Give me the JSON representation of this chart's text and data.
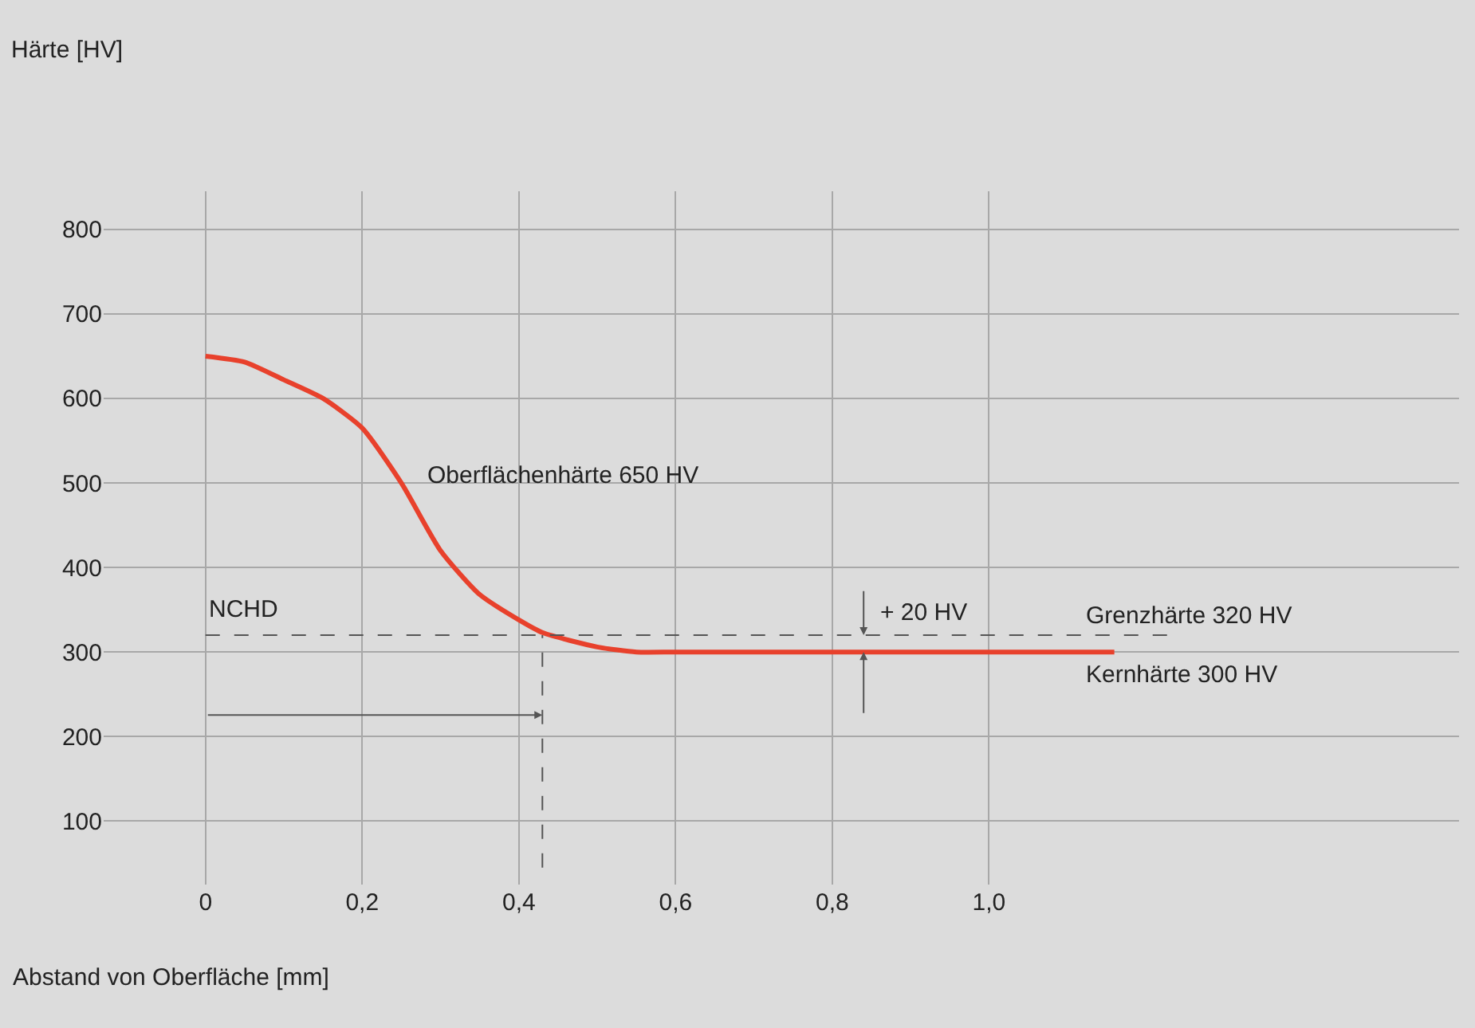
{
  "chart_data": {
    "type": "line",
    "xlabel": "Abstand von Oberfläche [mm]",
    "series": [
      {
        "color": "#e8412c",
        "x": [
          0,
          0.05,
          0.1,
          0.15,
          0.2,
          0.25,
          0.3,
          0.35,
          0.4,
          0.43,
          0.5,
          0.55,
          0.6,
          0.8,
          1.0,
          1.16
        ],
        "values": [
          650,
          643,
          622,
          600,
          565,
          500,
          420,
          368,
          338,
          323,
          306,
          300,
          300,
          300,
          300,
          300
        ]
      }
    ],
    "xlim": [
      -0.13,
      1.6
    ],
    "ylim": [
      25,
      845
    ],
    "xticks": [
      0,
      {
        "value": 0.2,
        "label": "0,2"
      },
      {
        "value": 0.4,
        "label": "0,4"
      },
      {
        "value": 0.6,
        "label": "0,6"
      },
      {
        "value": 0.8,
        "label": "0,8"
      },
      {
        "value": 1.0,
        "label": "1,0"
      }
    ],
    "yticks": [
      100,
      200,
      300,
      400,
      500,
      600,
      700,
      800
    ],
    "ref_lines": [
      {
        "axis": "y",
        "value": 320,
        "label": "Grenzhärte 320 HV",
        "line_style": "dashed",
        "color": "#555555"
      },
      {
        "axis": "x",
        "value": 0.43,
        "line_style": "dashed",
        "color": "#555555"
      }
    ],
    "annotations": [
      "Härte [HV]",
      "Oberflächenhärte 650 HV",
      {
        "text": "NCHD",
        "x": 0,
        "y": 320
      },
      {
        "text": "+ 20 HV",
        "x": 0.84,
        "y": 320
      },
      {
        "text": "Kernhärte 300 HV",
        "x": 1.12,
        "y": 300
      }
    ],
    "grid": true,
    "marker": "none",
    "line_style": "solid"
  }
}
